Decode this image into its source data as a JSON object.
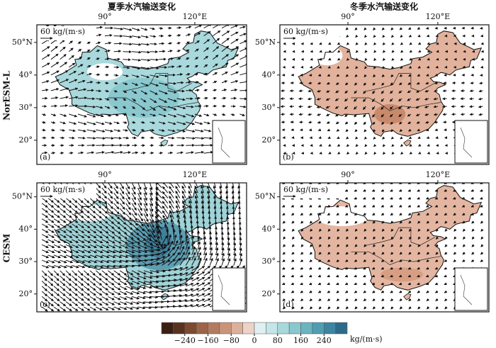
{
  "columns": [
    "夏季水汽输送变化",
    "冬季水汽输送变化"
  ],
  "rows": [
    "NorESM-L",
    "CESM"
  ],
  "panels": [
    {
      "label": "(a)",
      "ref": "60 kg/(m·s)",
      "lon_labels": [
        "90°",
        "120°E"
      ],
      "lat_labels": [
        "50°N",
        "40°",
        "30°",
        "20°"
      ],
      "fill": "#a9d9dc",
      "accent": "#7cc0c8"
    },
    {
      "label": "(b)",
      "ref": "60 kg/(m·s)",
      "lon_labels": [
        "90°",
        "120°E"
      ],
      "lat_labels": [
        "50°N",
        "40°",
        "30°",
        "20°"
      ],
      "fill": "#e2b29c",
      "accent": "#c98a6c"
    },
    {
      "label": "(c)",
      "ref": "60 kg/(m·s)",
      "lon_labels": [
        "90°",
        "120°E"
      ],
      "lat_labels": [
        "50°N",
        "40°",
        "30°",
        "20°"
      ],
      "fill": "#9fd3d8",
      "accent": "#3f7f99"
    },
    {
      "label": "(d)",
      "ref": "60 kg/(m·s)",
      "lon_labels": [
        "90°",
        "120°E"
      ],
      "lat_labels": [
        "50°N",
        "40°",
        "30°",
        "20°"
      ],
      "fill": "#e4b6a1",
      "accent": "#d79e83"
    }
  ],
  "colorbar": {
    "unit": "kg/(m·s)",
    "ticks": [
      {
        "value": -240,
        "label": "−240"
      },
      {
        "value": -160,
        "label": "−160"
      },
      {
        "value": -80,
        "label": "−80"
      },
      0,
      80,
      160,
      240
    ],
    "colors": [
      "#3b1f12",
      "#5a3220",
      "#7d4a30",
      "#9c6448",
      "#b47a5e",
      "#c99478",
      "#dcb09a",
      "#edd3c6",
      "#dff0f1",
      "#c4e6e8",
      "#a6d8dc",
      "#88c8cf",
      "#6ab5c0",
      "#4f9db0",
      "#3c84a0",
      "#2d6a8a"
    ]
  }
}
